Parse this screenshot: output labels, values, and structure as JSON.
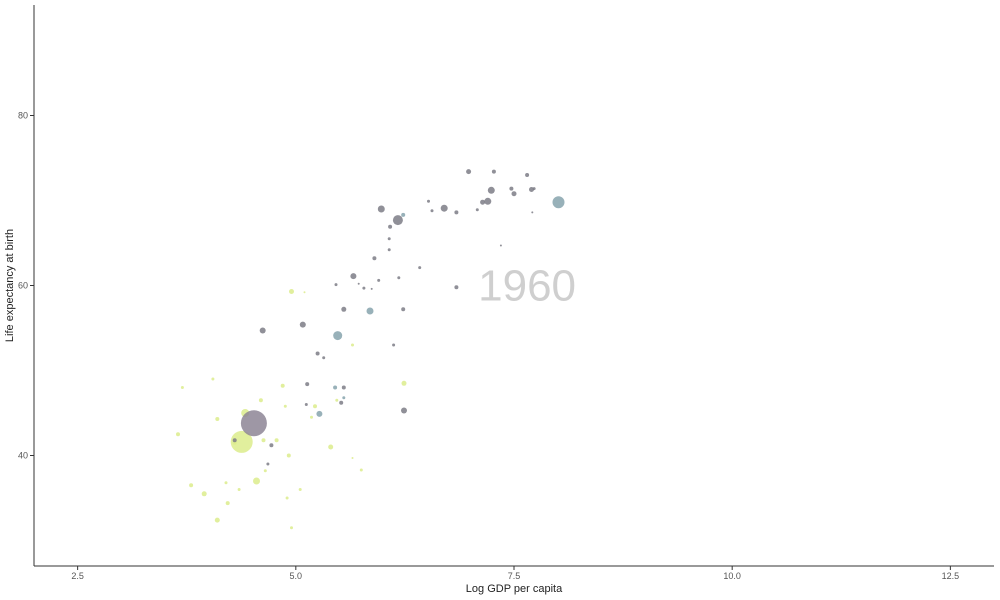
{
  "chart_data": {
    "type": "scatter",
    "title": "",
    "xlabel": "Log GDP per capita",
    "ylabel": "Life expectancy at birth",
    "xlim": [
      2.0,
      13.0
    ],
    "ylim": [
      27.0,
      93.0
    ],
    "x_ticks": [
      2.5,
      5.0,
      7.5,
      10.0,
      12.5
    ],
    "x_tick_labels": [
      "2.5",
      "5.0",
      "7.5",
      "10.0",
      "12.5"
    ],
    "y_ticks": [
      40,
      60,
      80
    ],
    "y_tick_labels": [
      "40",
      "60",
      "80"
    ],
    "grid": false,
    "legend": "none",
    "watermark": "1960",
    "colors": {
      "grey": "#7d7d86",
      "slate": "#86a3ad",
      "lime": "#dcec8c",
      "mauve": "#8d8595",
      "watermark": "#cfcfcf",
      "axis": "#333333"
    },
    "points": [
      {
        "x": 3.7,
        "y": 48.0,
        "size": 1.5,
        "color": "lime"
      },
      {
        "x": 3.65,
        "y": 42.5,
        "size": 2,
        "color": "lime"
      },
      {
        "x": 3.8,
        "y": 36.5,
        "size": 2,
        "color": "lime"
      },
      {
        "x": 3.95,
        "y": 35.5,
        "size": 2.5,
        "color": "lime"
      },
      {
        "x": 4.05,
        "y": 49.0,
        "size": 1.5,
        "color": "lime"
      },
      {
        "x": 4.1,
        "y": 44.3,
        "size": 2,
        "color": "lime"
      },
      {
        "x": 4.1,
        "y": 32.4,
        "size": 2.5,
        "color": "lime"
      },
      {
        "x": 4.22,
        "y": 34.4,
        "size": 2,
        "color": "lime"
      },
      {
        "x": 4.2,
        "y": 36.8,
        "size": 1.5,
        "color": "lime"
      },
      {
        "x": 4.3,
        "y": 41.5,
        "size": 2,
        "color": "lime"
      },
      {
        "x": 4.35,
        "y": 36.0,
        "size": 1.5,
        "color": "lime"
      },
      {
        "x": 4.38,
        "y": 41.6,
        "size": 11,
        "color": "lime"
      },
      {
        "x": 4.42,
        "y": 45.0,
        "size": 4,
        "color": "lime"
      },
      {
        "x": 4.52,
        "y": 43.8,
        "size": 13,
        "color": "mauve"
      },
      {
        "x": 4.3,
        "y": 41.8,
        "size": 2,
        "color": "grey"
      },
      {
        "x": 4.55,
        "y": 37.0,
        "size": 3.5,
        "color": "lime"
      },
      {
        "x": 4.6,
        "y": 46.5,
        "size": 2,
        "color": "lime"
      },
      {
        "x": 4.63,
        "y": 41.8,
        "size": 2,
        "color": "lime"
      },
      {
        "x": 4.65,
        "y": 38.2,
        "size": 1.5,
        "color": "lime"
      },
      {
        "x": 4.68,
        "y": 39.0,
        "size": 1.5,
        "color": "grey"
      },
      {
        "x": 4.72,
        "y": 41.2,
        "size": 2,
        "color": "grey"
      },
      {
        "x": 4.78,
        "y": 41.8,
        "size": 2,
        "color": "lime"
      },
      {
        "x": 4.85,
        "y": 48.2,
        "size": 2,
        "color": "lime"
      },
      {
        "x": 4.88,
        "y": 45.8,
        "size": 1.5,
        "color": "lime"
      },
      {
        "x": 4.9,
        "y": 35.0,
        "size": 1.5,
        "color": "lime"
      },
      {
        "x": 4.92,
        "y": 40.0,
        "size": 2,
        "color": "lime"
      },
      {
        "x": 4.95,
        "y": 31.5,
        "size": 1.5,
        "color": "lime"
      },
      {
        "x": 4.62,
        "y": 54.7,
        "size": 3,
        "color": "grey"
      },
      {
        "x": 4.95,
        "y": 59.3,
        "size": 2.5,
        "color": "lime"
      },
      {
        "x": 5.05,
        "y": 36.0,
        "size": 1.5,
        "color": "lime"
      },
      {
        "x": 5.08,
        "y": 55.4,
        "size": 3,
        "color": "grey"
      },
      {
        "x": 5.1,
        "y": 59.2,
        "size": 1,
        "color": "lime"
      },
      {
        "x": 5.12,
        "y": 46.0,
        "size": 1.5,
        "color": "grey"
      },
      {
        "x": 5.13,
        "y": 48.4,
        "size": 2,
        "color": "grey"
      },
      {
        "x": 5.18,
        "y": 44.5,
        "size": 1.5,
        "color": "lime"
      },
      {
        "x": 5.22,
        "y": 45.8,
        "size": 2,
        "color": "lime"
      },
      {
        "x": 5.25,
        "y": 52.0,
        "size": 2,
        "color": "grey"
      },
      {
        "x": 5.27,
        "y": 44.9,
        "size": 3,
        "color": "slate"
      },
      {
        "x": 5.32,
        "y": 51.5,
        "size": 1.5,
        "color": "grey"
      },
      {
        "x": 5.4,
        "y": 41.0,
        "size": 2.5,
        "color": "lime"
      },
      {
        "x": 5.45,
        "y": 48.0,
        "size": 2,
        "color": "slate"
      },
      {
        "x": 5.46,
        "y": 60.1,
        "size": 1.5,
        "color": "grey"
      },
      {
        "x": 5.47,
        "y": 46.5,
        "size": 1.5,
        "color": "lime"
      },
      {
        "x": 5.48,
        "y": 54.1,
        "size": 4.5,
        "color": "slate"
      },
      {
        "x": 5.52,
        "y": 46.2,
        "size": 2,
        "color": "grey"
      },
      {
        "x": 5.55,
        "y": 46.8,
        "size": 1.5,
        "color": "slate"
      },
      {
        "x": 5.55,
        "y": 48.0,
        "size": 2,
        "color": "grey"
      },
      {
        "x": 5.55,
        "y": 57.2,
        "size": 2.5,
        "color": "grey"
      },
      {
        "x": 5.65,
        "y": 39.7,
        "size": 1,
        "color": "lime"
      },
      {
        "x": 5.65,
        "y": 53.0,
        "size": 1.5,
        "color": "lime"
      },
      {
        "x": 5.66,
        "y": 61.1,
        "size": 3,
        "color": "grey"
      },
      {
        "x": 5.72,
        "y": 60.2,
        "size": 1,
        "color": "grey"
      },
      {
        "x": 5.75,
        "y": 38.3,
        "size": 1.5,
        "color": "lime"
      },
      {
        "x": 5.78,
        "y": 59.7,
        "size": 1.5,
        "color": "grey"
      },
      {
        "x": 5.85,
        "y": 57.0,
        "size": 3.5,
        "color": "slate"
      },
      {
        "x": 5.87,
        "y": 59.6,
        "size": 1,
        "color": "grey"
      },
      {
        "x": 5.9,
        "y": 63.2,
        "size": 2,
        "color": "grey"
      },
      {
        "x": 5.95,
        "y": 60.6,
        "size": 1.5,
        "color": "grey"
      },
      {
        "x": 5.98,
        "y": 69.0,
        "size": 3.5,
        "color": "grey"
      },
      {
        "x": 6.07,
        "y": 64.2,
        "size": 1.5,
        "color": "grey"
      },
      {
        "x": 6.07,
        "y": 65.5,
        "size": 1.5,
        "color": "grey"
      },
      {
        "x": 6.08,
        "y": 66.9,
        "size": 2,
        "color": "grey"
      },
      {
        "x": 6.12,
        "y": 53.0,
        "size": 1.5,
        "color": "grey"
      },
      {
        "x": 6.17,
        "y": 67.7,
        "size": 5,
        "color": "grey"
      },
      {
        "x": 6.18,
        "y": 60.9,
        "size": 1.5,
        "color": "grey"
      },
      {
        "x": 6.23,
        "y": 68.3,
        "size": 2,
        "color": "slate"
      },
      {
        "x": 6.23,
        "y": 57.2,
        "size": 2,
        "color": "grey"
      },
      {
        "x": 6.24,
        "y": 48.5,
        "size": 2.5,
        "color": "lime"
      },
      {
        "x": 6.24,
        "y": 45.3,
        "size": 3,
        "color": "grey"
      },
      {
        "x": 6.42,
        "y": 62.1,
        "size": 1.5,
        "color": "grey"
      },
      {
        "x": 6.52,
        "y": 69.9,
        "size": 1.5,
        "color": "grey"
      },
      {
        "x": 6.56,
        "y": 68.8,
        "size": 1.5,
        "color": "grey"
      },
      {
        "x": 6.7,
        "y": 69.1,
        "size": 3.5,
        "color": "grey"
      },
      {
        "x": 6.84,
        "y": 68.6,
        "size": 2,
        "color": "grey"
      },
      {
        "x": 6.84,
        "y": 59.8,
        "size": 2,
        "color": "grey"
      },
      {
        "x": 6.98,
        "y": 73.4,
        "size": 2.5,
        "color": "grey"
      },
      {
        "x": 7.08,
        "y": 68.9,
        "size": 1.5,
        "color": "grey"
      },
      {
        "x": 7.14,
        "y": 69.8,
        "size": 2.5,
        "color": "grey"
      },
      {
        "x": 7.2,
        "y": 69.9,
        "size": 3.5,
        "color": "grey"
      },
      {
        "x": 7.24,
        "y": 71.2,
        "size": 3.5,
        "color": "grey"
      },
      {
        "x": 7.27,
        "y": 73.4,
        "size": 2,
        "color": "grey"
      },
      {
        "x": 7.35,
        "y": 64.7,
        "size": 1,
        "color": "grey"
      },
      {
        "x": 7.47,
        "y": 71.4,
        "size": 2,
        "color": "grey"
      },
      {
        "x": 7.5,
        "y": 70.8,
        "size": 2.5,
        "color": "grey"
      },
      {
        "x": 7.65,
        "y": 73.0,
        "size": 2,
        "color": "grey"
      },
      {
        "x": 7.7,
        "y": 71.3,
        "size": 2.5,
        "color": "grey"
      },
      {
        "x": 7.71,
        "y": 68.6,
        "size": 1,
        "color": "grey"
      },
      {
        "x": 7.73,
        "y": 71.4,
        "size": 1.5,
        "color": "grey"
      },
      {
        "x": 8.01,
        "y": 69.8,
        "size": 6,
        "color": "slate"
      }
    ]
  }
}
